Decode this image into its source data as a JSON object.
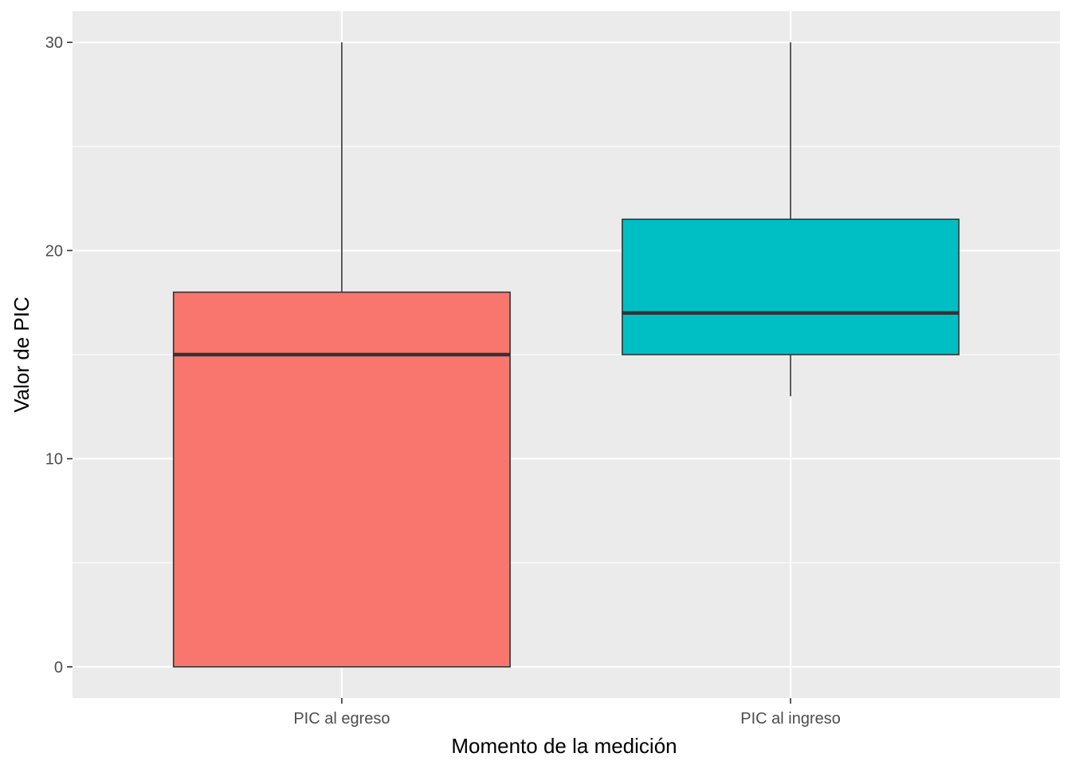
{
  "chart_data": {
    "type": "boxplot",
    "title": "",
    "xlabel": "Momento de la medición",
    "ylabel": "Valor de PIC",
    "ylim": [
      -1.5,
      31.5
    ],
    "y_ticks": [
      0,
      10,
      20,
      30
    ],
    "y_tick_labels": [
      "0",
      "10",
      "20",
      "30"
    ],
    "grid": true,
    "legend": "none",
    "categories": [
      "PIC al egreso",
      "PIC al ingreso"
    ],
    "boxes": [
      {
        "category": "PIC al egreso",
        "min": 0,
        "q1": 0,
        "median": 15,
        "q3": 18,
        "max": 30,
        "fill": "#F8766D"
      },
      {
        "category": "PIC al ingreso",
        "min": 13,
        "q1": 15,
        "median": 17,
        "q3": 21.5,
        "max": 30,
        "fill": "#00BFC4"
      }
    ],
    "colors": {
      "panel_background": "#EBEBEB",
      "grid_major": "#FFFFFF",
      "box_outline": "#333333"
    }
  }
}
